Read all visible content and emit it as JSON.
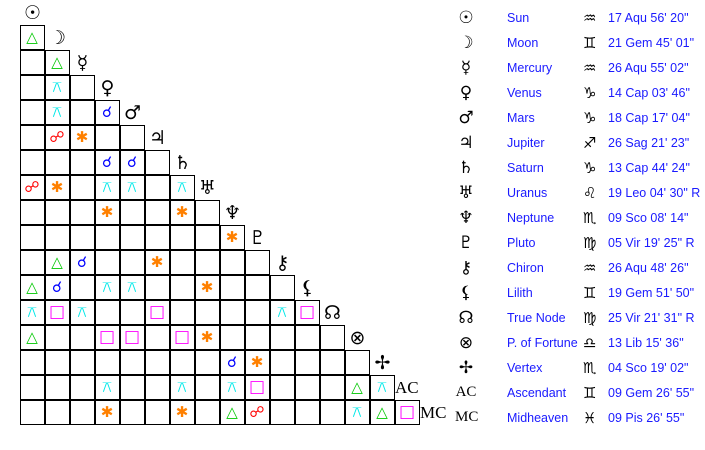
{
  "planets": [
    {
      "name": "Sun",
      "glyph": "☉",
      "icon": "sun-icon",
      "sign": "♒",
      "sign_icon": "aquarius-icon",
      "position": "17 Aqu 56' 20\""
    },
    {
      "name": "Moon",
      "glyph": "☽",
      "icon": "moon-icon",
      "sign": "♊",
      "sign_icon": "gemini-icon",
      "position": "21 Gem 45' 01\""
    },
    {
      "name": "Mercury",
      "glyph": "☿",
      "icon": "mercury-icon",
      "sign": "♒",
      "sign_icon": "aquarius-icon",
      "position": "26 Aqu 55' 02\""
    },
    {
      "name": "Venus",
      "glyph": "♀",
      "icon": "venus-icon",
      "sign": "♑",
      "sign_icon": "capricorn-icon",
      "position": "14 Cap 03' 46\""
    },
    {
      "name": "Mars",
      "glyph": "♂",
      "icon": "mars-icon",
      "sign": "♑",
      "sign_icon": "capricorn-icon",
      "position": "18 Cap 17' 04\""
    },
    {
      "name": "Jupiter",
      "glyph": "♃",
      "icon": "jupiter-icon",
      "sign": "♐",
      "sign_icon": "sagittarius-icon",
      "position": "26 Sag 21' 23\""
    },
    {
      "name": "Saturn",
      "glyph": "♄",
      "icon": "saturn-icon",
      "sign": "♑",
      "sign_icon": "capricorn-icon",
      "position": "13 Cap 44' 24\""
    },
    {
      "name": "Uranus",
      "glyph": "♅",
      "icon": "uranus-icon",
      "sign": "♌",
      "sign_icon": "leo-icon",
      "position": "19 Leo 04' 30\" R"
    },
    {
      "name": "Neptune",
      "glyph": "♆",
      "icon": "neptune-icon",
      "sign": "♏",
      "sign_icon": "scorpio-icon",
      "position": "09 Sco 08' 14\""
    },
    {
      "name": "Pluto",
      "glyph": "♇",
      "icon": "pluto-icon",
      "sign": "♍",
      "sign_icon": "virgo-icon",
      "position": "05 Vir 19' 25\" R"
    },
    {
      "name": "Chiron",
      "glyph": "⚷",
      "icon": "chiron-icon",
      "sign": "♒",
      "sign_icon": "aquarius-icon",
      "position": "26 Aqu 48' 26\""
    },
    {
      "name": "Lilith",
      "glyph": "⚸",
      "icon": "lilith-icon",
      "sign": "♊",
      "sign_icon": "gemini-icon",
      "position": "19 Gem 51' 50\""
    },
    {
      "name": "True Node",
      "glyph": "☊",
      "icon": "true-node-icon",
      "sign": "♍",
      "sign_icon": "virgo-icon",
      "position": "25 Vir 21' 31\" R"
    },
    {
      "name": "P. of Fortune",
      "glyph": "⊗",
      "icon": "part-of-fortune-icon",
      "sign": "♎",
      "sign_icon": "libra-icon",
      "position": "13 Lib 15' 36\""
    },
    {
      "name": "Vertex",
      "glyph": "✢",
      "icon": "vertex-icon",
      "sign": "♏",
      "sign_icon": "scorpio-icon",
      "position": "04 Sco 19' 02\""
    },
    {
      "name": "Ascendant",
      "glyph": "AC",
      "icon": "ascendant-icon",
      "sign": "♊",
      "sign_icon": "gemini-icon",
      "position": "09 Gem 26' 55\""
    },
    {
      "name": "Midheaven",
      "glyph": "MC",
      "icon": "midheaven-icon",
      "sign": "♓",
      "sign_icon": "pisces-icon",
      "position": "09 Pis 26' 55\""
    }
  ],
  "aspect_types": {
    "trine": {
      "symbol": "△",
      "color": "#00c800"
    },
    "sextile": {
      "symbol": "✱",
      "color": "#ff8000"
    },
    "square": {
      "symbol": "□",
      "color": "#ff00ff"
    },
    "conjunction": {
      "symbol": "☌",
      "color": "#0000ff"
    },
    "opposition": {
      "symbol": "☍",
      "color": "#ff0000"
    },
    "quincunx": {
      "symbol": "⚻",
      "color": "#00e8e8"
    }
  },
  "aspects": [
    [
      "Moon",
      "Sun",
      "trine"
    ],
    [
      "Mercury",
      "Moon",
      "trine"
    ],
    [
      "Venus",
      "Moon",
      "quincunx"
    ],
    [
      "Mars",
      "Moon",
      "quincunx"
    ],
    [
      "Mars",
      "Venus",
      "conjunction"
    ],
    [
      "Jupiter",
      "Moon",
      "opposition"
    ],
    [
      "Jupiter",
      "Mercury",
      "sextile"
    ],
    [
      "Saturn",
      "Venus",
      "conjunction"
    ],
    [
      "Saturn",
      "Mars",
      "conjunction"
    ],
    [
      "Uranus",
      "Sun",
      "opposition"
    ],
    [
      "Uranus",
      "Moon",
      "sextile"
    ],
    [
      "Uranus",
      "Venus",
      "quincunx"
    ],
    [
      "Uranus",
      "Mars",
      "quincunx"
    ],
    [
      "Uranus",
      "Saturn",
      "quincunx"
    ],
    [
      "Neptune",
      "Venus",
      "sextile"
    ],
    [
      "Neptune",
      "Saturn",
      "sextile"
    ],
    [
      "Pluto",
      "Neptune",
      "sextile"
    ],
    [
      "Chiron",
      "Moon",
      "trine"
    ],
    [
      "Chiron",
      "Mercury",
      "conjunction"
    ],
    [
      "Chiron",
      "Jupiter",
      "sextile"
    ],
    [
      "Lilith",
      "Sun",
      "trine"
    ],
    [
      "Lilith",
      "Moon",
      "conjunction"
    ],
    [
      "Lilith",
      "Venus",
      "quincunx"
    ],
    [
      "Lilith",
      "Mars",
      "quincunx"
    ],
    [
      "Lilith",
      "Uranus",
      "sextile"
    ],
    [
      "True Node",
      "Sun",
      "quincunx"
    ],
    [
      "True Node",
      "Moon",
      "square"
    ],
    [
      "True Node",
      "Mercury",
      "quincunx"
    ],
    [
      "True Node",
      "Jupiter",
      "square"
    ],
    [
      "True Node",
      "Chiron",
      "quincunx"
    ],
    [
      "True Node",
      "Lilith",
      "square"
    ],
    [
      "P. of Fortune",
      "Sun",
      "trine"
    ],
    [
      "P. of Fortune",
      "Venus",
      "square"
    ],
    [
      "P. of Fortune",
      "Mars",
      "square"
    ],
    [
      "P. of Fortune",
      "Saturn",
      "square"
    ],
    [
      "P. of Fortune",
      "Uranus",
      "sextile"
    ],
    [
      "Vertex",
      "Neptune",
      "conjunction"
    ],
    [
      "Vertex",
      "Pluto",
      "sextile"
    ],
    [
      "Ascendant",
      "Venus",
      "quincunx"
    ],
    [
      "Ascendant",
      "Saturn",
      "quincunx"
    ],
    [
      "Ascendant",
      "Neptune",
      "quincunx"
    ],
    [
      "Ascendant",
      "Pluto",
      "square"
    ],
    [
      "Ascendant",
      "P. of Fortune",
      "trine"
    ],
    [
      "Ascendant",
      "Vertex",
      "quincunx"
    ],
    [
      "Midheaven",
      "Venus",
      "sextile"
    ],
    [
      "Midheaven",
      "Saturn",
      "sextile"
    ],
    [
      "Midheaven",
      "Neptune",
      "trine"
    ],
    [
      "Midheaven",
      "Pluto",
      "opposition"
    ],
    [
      "Midheaven",
      "P. of Fortune",
      "quincunx"
    ],
    [
      "Midheaven",
      "Vertex",
      "trine"
    ],
    [
      "Midheaven",
      "Ascendant",
      "square"
    ]
  ]
}
